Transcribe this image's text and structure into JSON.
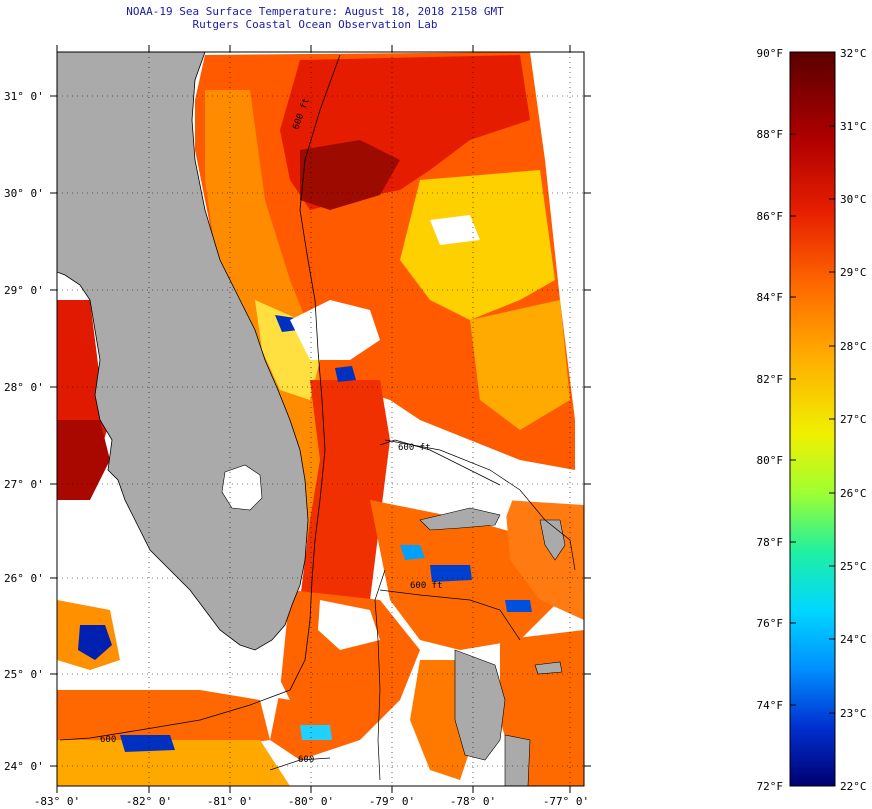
{
  "header": {
    "title": "NOAA-19 Sea Surface Temperature:  August 18, 2018 2158 GMT",
    "subtitle": "Rutgers Coastal Ocean Observation Lab"
  },
  "map": {
    "lat_labels": [
      "31° 0'",
      "30° 0'",
      "29° 0'",
      "28° 0'",
      "27° 0'",
      "26° 0'",
      "25° 0'",
      "24° 0'"
    ],
    "lon_labels": [
      "-83° 0'",
      "-82° 0'",
      "-81° 0'",
      "-80° 0'",
      "-79° 0'",
      "-78° 0'",
      "-77° 0'"
    ],
    "contour_labels": [
      "600 ft",
      "600 ft",
      "600 ft",
      "600",
      "600"
    ],
    "land_color": "#aaaaaa",
    "no_data_color": "#ffffff"
  },
  "colorbar": {
    "fahrenheit_labels": [
      "90°F",
      "88°F",
      "86°F",
      "84°F",
      "82°F",
      "80°F",
      "78°F",
      "76°F",
      "74°F",
      "72°F"
    ],
    "celsius_labels": [
      "32°C",
      "31°C",
      "30°C",
      "29°C",
      "28°C",
      "27°C",
      "26°C",
      "25°C",
      "24°C",
      "23°C",
      "22°C"
    ],
    "colors": [
      "#6b0000",
      "#c01010",
      "#ff3b00",
      "#ff8a00",
      "#ffe000",
      "#a0ff40",
      "#20e0c0",
      "#00a0ff",
      "#0040e0",
      "#000080"
    ]
  }
}
